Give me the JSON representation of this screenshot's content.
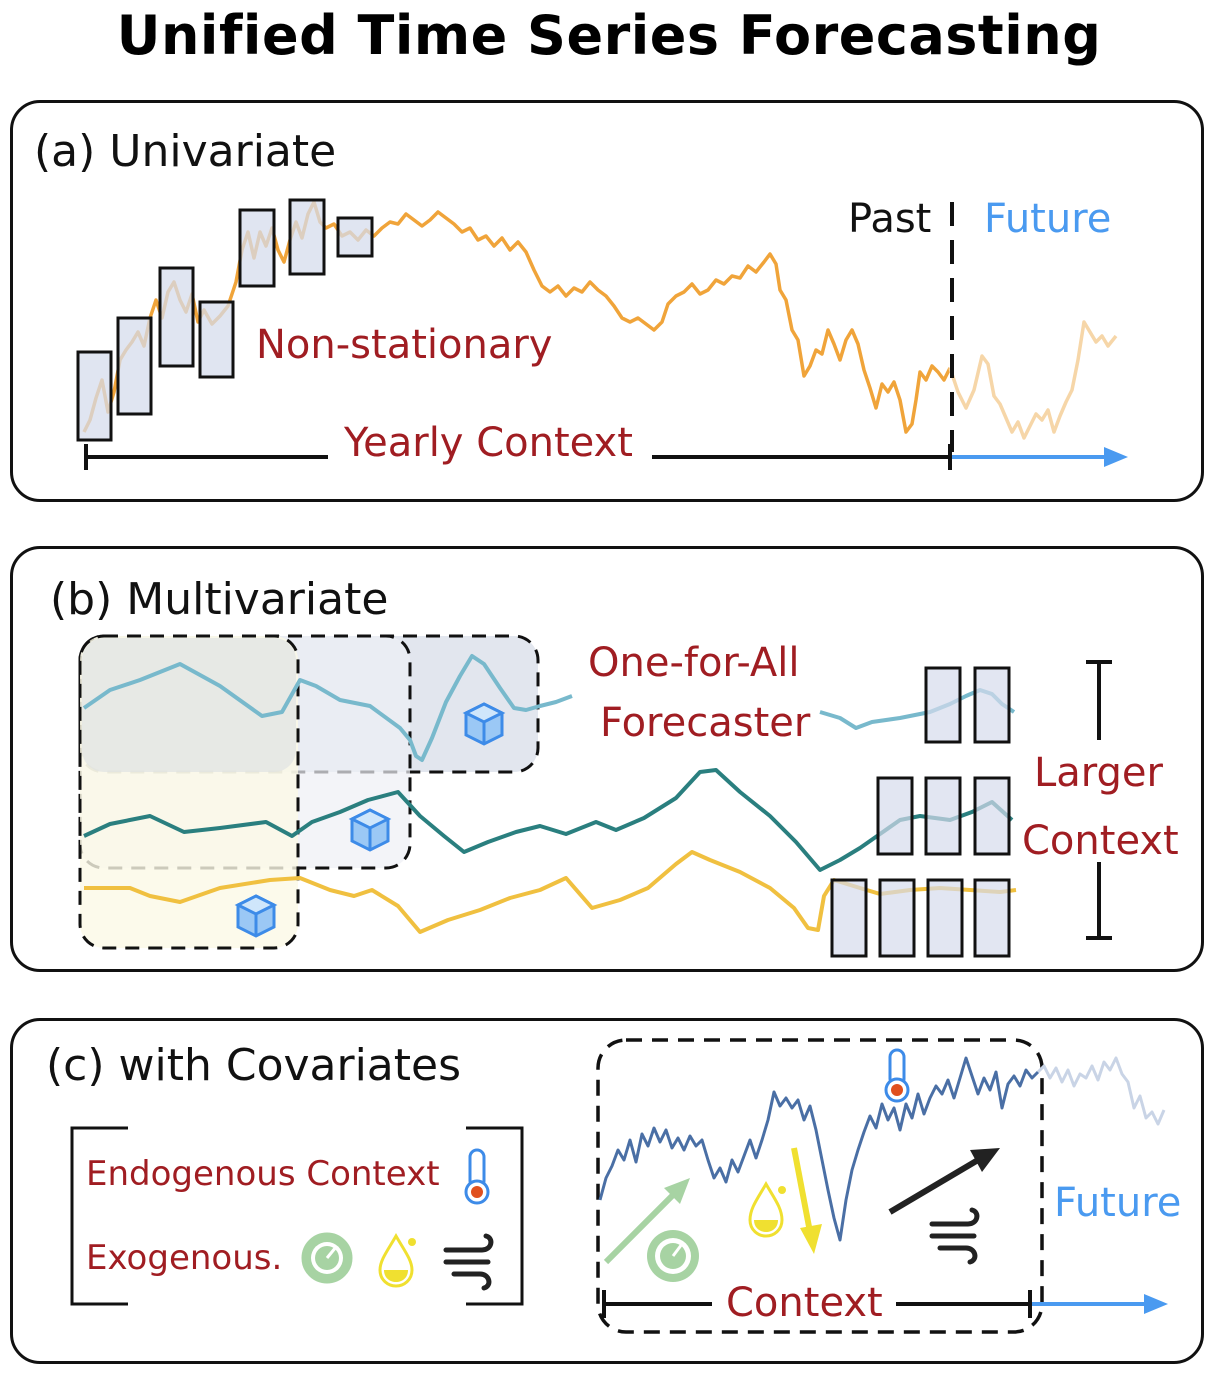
{
  "title": "Unified Time Series Forecasting",
  "colors": {
    "dark_red": "#a01d22",
    "future_blue": "#4a9af0",
    "orange": "#f0a43a",
    "teal_light": "#78b9cc",
    "teal_dark": "#2a7f7f",
    "yellow_line": "#f0c040",
    "dark_blue_line": "#4a6fa5",
    "box_fill": "#dfe4f1"
  },
  "panel_a": {
    "title": "(a) Univariate",
    "past_label": "Past",
    "future_label": "Future",
    "nonstationary_label": "Non-stationary",
    "context_label": "Yearly Context"
  },
  "panel_b": {
    "title": "(b) Multivariate",
    "forecaster_line1": "One-for-All",
    "forecaster_line2": "Forecaster",
    "larger_line1": "Larger",
    "larger_line2": "Context"
  },
  "panel_c": {
    "title": "(c) with Covariates",
    "endogenous_label": "Endogenous Context",
    "exogenous_label": "Exogenous.",
    "context_label": "Context",
    "future_label": "Future",
    "icons": [
      "thermometer-icon",
      "gauge-icon",
      "droplet-icon",
      "wind-icon",
      "cube-icon"
    ]
  }
}
